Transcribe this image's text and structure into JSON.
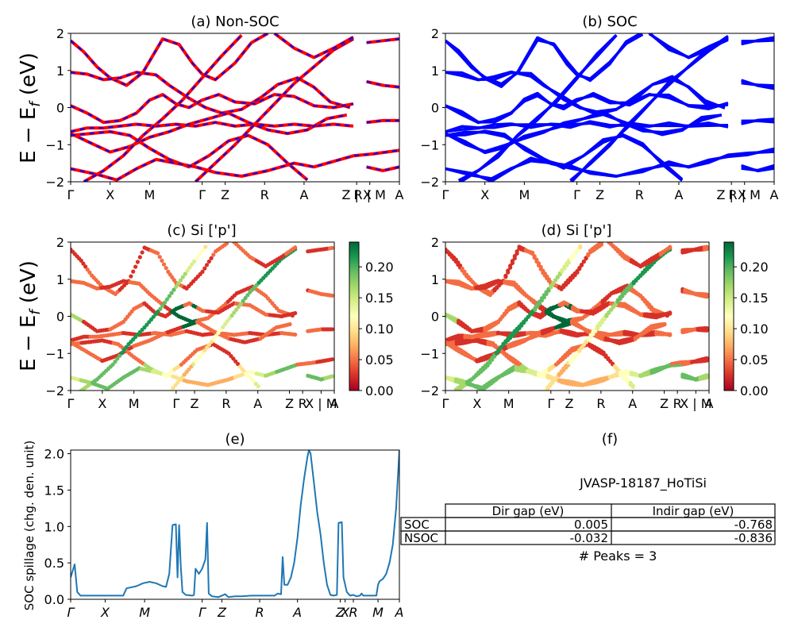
{
  "chart_data": [
    {
      "type": "line",
      "panel": "a",
      "title": "(a) Non-SOC",
      "ylabel": "E − E_f (eV)",
      "ylim": [
        -2,
        2
      ],
      "yticks": [
        "−2",
        "−1",
        "0",
        "1",
        "2"
      ],
      "xticks": [
        "Γ",
        "X",
        "M",
        "Γ",
        "Z",
        "R",
        "A",
        "Z | X",
        "R | M",
        "A"
      ],
      "colors": [
        "#ff0000",
        "#0000ff"
      ],
      "bands": [
        {
          "points": [
            [
              0,
              1.8
            ],
            [
              0.04,
              1.5
            ],
            [
              0.08,
              1.1
            ],
            [
              0.12,
              0.8
            ],
            [
              0.17,
              0.6
            ],
            [
              0.22,
              0.95
            ],
            [
              0.28,
              1.85
            ],
            [
              0.33,
              1.7
            ],
            [
              0.37,
              1.2
            ],
            [
              0.4,
              0.9
            ],
            [
              0.44,
              0.75
            ],
            [
              0.5,
              1.2
            ],
            [
              0.55,
              1.75
            ],
            [
              0.6,
              2.0
            ]
          ]
        },
        {
          "points": [
            [
              0,
              0.95
            ],
            [
              0.05,
              0.9
            ],
            [
              0.1,
              0.75
            ],
            [
              0.15,
              0.8
            ],
            [
              0.2,
              0.95
            ],
            [
              0.26,
              0.88
            ],
            [
              0.3,
              0.6
            ],
            [
              0.36,
              0.25
            ],
            [
              0.41,
              0.0
            ],
            [
              0.46,
              -0.15
            ],
            [
              0.52,
              -0.05
            ],
            [
              0.58,
              0.28
            ],
            [
              0.63,
              0.62
            ],
            [
              0.69,
              0.8
            ],
            [
              0.74,
              0.55
            ],
            [
              0.79,
              0.15
            ],
            [
              0.85,
              0.0
            ]
          ]
        },
        {
          "points": [
            [
              0,
              0.05
            ],
            [
              0.05,
              -0.15
            ],
            [
              0.1,
              -0.4
            ],
            [
              0.15,
              -0.35
            ],
            [
              0.2,
              -0.15
            ],
            [
              0.24,
              0.2
            ],
            [
              0.28,
              0.35
            ],
            [
              0.32,
              0.1
            ],
            [
              0.36,
              0.0
            ],
            [
              0.4,
              0.2
            ],
            [
              0.45,
              0.35
            ],
            [
              0.5,
              0.15
            ],
            [
              0.56,
              0.1
            ],
            [
              0.62,
              0.35
            ],
            [
              0.68,
              0.3
            ],
            [
              0.74,
              0.05
            ],
            [
              0.8,
              0.0
            ],
            [
              0.86,
              0.1
            ]
          ]
        },
        {
          "points": [
            [
              0,
              -0.65
            ],
            [
              0.05,
              -0.55
            ],
            [
              0.1,
              -0.55
            ],
            [
              0.15,
              -0.5
            ],
            [
              0.2,
              -0.45
            ],
            [
              0.26,
              -0.5
            ],
            [
              0.32,
              -0.45
            ],
            [
              0.38,
              -0.5
            ],
            [
              0.44,
              -0.4
            ],
            [
              0.5,
              -0.5
            ],
            [
              0.56,
              -0.45
            ],
            [
              0.62,
              -0.5
            ],
            [
              0.68,
              -0.45
            ],
            [
              0.74,
              -0.5
            ],
            [
              0.8,
              -0.45
            ],
            [
              0.86,
              -0.5
            ]
          ]
        },
        {
          "points": [
            [
              0,
              -0.7
            ],
            [
              0.06,
              -0.95
            ],
            [
              0.12,
              -1.2
            ],
            [
              0.18,
              -1.05
            ],
            [
              0.24,
              -0.8
            ],
            [
              0.3,
              -0.65
            ],
            [
              0.36,
              -0.45
            ],
            [
              0.42,
              -0.3
            ],
            [
              0.48,
              -0.15
            ],
            [
              0.54,
              -0.4
            ],
            [
              0.6,
              -0.6
            ],
            [
              0.66,
              -0.7
            ],
            [
              0.72,
              -0.6
            ],
            [
              0.78,
              -0.3
            ],
            [
              0.84,
              -0.2
            ]
          ]
        },
        {
          "points": [
            [
              0,
              -0.75
            ],
            [
              0.06,
              -0.7
            ],
            [
              0.12,
              -0.65
            ],
            [
              0.18,
              -0.75
            ],
            [
              0.24,
              -1.1
            ],
            [
              0.3,
              -1.4
            ],
            [
              0.36,
              -1.6
            ],
            [
              0.42,
              -1.3
            ],
            [
              0.48,
              -0.9
            ],
            [
              0.54,
              -0.75
            ],
            [
              0.6,
              -1.0
            ],
            [
              0.66,
              -1.5
            ],
            [
              0.72,
              -1.95
            ]
          ]
        },
        {
          "points": [
            [
              0,
              -1.65
            ],
            [
              0.08,
              -1.8
            ],
            [
              0.14,
              -1.95
            ],
            [
              0.2,
              -1.65
            ],
            [
              0.26,
              -1.4
            ],
            [
              0.32,
              -1.5
            ],
            [
              0.38,
              -1.6
            ],
            [
              0.44,
              -1.75
            ],
            [
              0.52,
              -1.85
            ],
            [
              0.6,
              -1.7
            ],
            [
              0.68,
              -1.5
            ],
            [
              0.74,
              -1.6
            ],
            [
              0.8,
              -1.45
            ],
            [
              0.86,
              -1.3
            ],
            [
              0.92,
              -1.25
            ],
            [
              1.0,
              -1.15
            ]
          ]
        },
        {
          "points": [
            [
              0.04,
              -2.0
            ],
            [
              0.1,
              -1.7
            ],
            [
              0.16,
              -1.3
            ],
            [
              0.22,
              -0.75
            ],
            [
              0.28,
              -0.3
            ],
            [
              0.34,
              0.2
            ],
            [
              0.4,
              0.8
            ],
            [
              0.46,
              1.4
            ],
            [
              0.52,
              1.95
            ]
          ]
        },
        {
          "points": [
            [
              0.38,
              -2.0
            ],
            [
              0.44,
              -1.5
            ],
            [
              0.5,
              -1.0
            ],
            [
              0.56,
              -0.45
            ],
            [
              0.62,
              0.1
            ],
            [
              0.68,
              0.65
            ],
            [
              0.74,
              1.1
            ],
            [
              0.8,
              1.55
            ],
            [
              0.86,
              1.85
            ]
          ]
        },
        {
          "points": [
            [
              0.62,
              2.0
            ],
            [
              0.68,
              1.6
            ],
            [
              0.74,
              1.35
            ],
            [
              0.8,
              1.6
            ],
            [
              0.86,
              1.9
            ]
          ]
        },
        {
          "points": [
            [
              0.9,
              1.75
            ],
            [
              0.95,
              1.8
            ],
            [
              1.0,
              1.85
            ]
          ]
        },
        {
          "points": [
            [
              0.9,
              0.7
            ],
            [
              0.95,
              0.6
            ],
            [
              1.0,
              0.55
            ]
          ]
        },
        {
          "points": [
            [
              0.9,
              -0.4
            ],
            [
              0.95,
              -0.35
            ],
            [
              1.0,
              -0.35
            ]
          ]
        },
        {
          "points": [
            [
              0.9,
              -1.6
            ],
            [
              0.95,
              -1.7
            ],
            [
              1.0,
              -1.6
            ]
          ]
        }
      ]
    },
    {
      "type": "line",
      "panel": "b",
      "title": "(b) SOC",
      "ylim": [
        -2,
        2
      ],
      "yticks": [
        "−2",
        "−1",
        "0",
        "1",
        "2"
      ],
      "xticks": [
        "Γ",
        "X",
        "M",
        "Γ",
        "Z",
        "R",
        "A",
        "Z | X",
        "R | M",
        "A"
      ],
      "colors": [
        "#0000ff"
      ]
    },
    {
      "type": "scatter",
      "panel": "c",
      "title": "(c)  Si ['p']",
      "ylabel": "E − E_f (eV)",
      "ylim": [
        -2,
        2
      ],
      "yticks": [
        "−2",
        "−1",
        "0",
        "1",
        "2"
      ],
      "xticks": [
        "Γ",
        "X",
        "M",
        "Γ",
        "Z",
        "R",
        "A",
        "Z",
        "R",
        "X | M",
        "A"
      ],
      "colorbar": {
        "ticks": [
          "0.00",
          "0.05",
          "0.10",
          "0.15",
          "0.20"
        ],
        "range": [
          0,
          0.24
        ],
        "colors": [
          "#a50026",
          "#d73027",
          "#f46d43",
          "#fdae61",
          "#fee08b",
          "#ffffbf",
          "#d9ef8b",
          "#a6d96a",
          "#66bd63",
          "#1a9850",
          "#006837"
        ]
      }
    },
    {
      "type": "scatter",
      "panel": "d",
      "title": "(d) Si ['p']",
      "ylim": [
        -2,
        2
      ],
      "yticks": [
        "−2",
        "−1",
        "0",
        "1",
        "2"
      ],
      "xticks": [
        "Γ",
        "X",
        "M",
        "Γ",
        "Z",
        "R",
        "A",
        "Z",
        "R",
        "X | M",
        "A"
      ],
      "colorbar": {
        "ticks": [
          "0.00",
          "0.05",
          "0.10",
          "0.15",
          "0.20"
        ],
        "range": [
          0,
          0.24
        ]
      }
    },
    {
      "type": "line",
      "panel": "e",
      "title": "(e)",
      "ylabel": "SOC spillage (chg. den. unit)",
      "ylim": [
        0,
        2.05
      ],
      "yticks": [
        "0.0",
        "0.5",
        "1.0",
        "1.5",
        "2.0"
      ],
      "xticks": [
        "Γ",
        "X",
        "M",
        "Γ",
        "Z",
        "R",
        "A",
        "Z",
        "X",
        "R",
        "M",
        "A"
      ],
      "color": "#1f77b4",
      "points": [
        [
          0,
          0.3
        ],
        [
          0.012,
          0.48
        ],
        [
          0.02,
          0.1
        ],
        [
          0.03,
          0.05
        ],
        [
          0.05,
          0.05
        ],
        [
          0.08,
          0.05
        ],
        [
          0.11,
          0.05
        ],
        [
          0.13,
          0.05
        ],
        [
          0.16,
          0.05
        ],
        [
          0.17,
          0.15
        ],
        [
          0.2,
          0.18
        ],
        [
          0.22,
          0.22
        ],
        [
          0.24,
          0.24
        ],
        [
          0.26,
          0.22
        ],
        [
          0.28,
          0.18
        ],
        [
          0.29,
          0.17
        ],
        [
          0.3,
          0.35
        ],
        [
          0.31,
          1.02
        ],
        [
          0.32,
          1.03
        ],
        [
          0.325,
          0.3
        ],
        [
          0.33,
          1.02
        ],
        [
          0.335,
          0.45
        ],
        [
          0.34,
          0.1
        ],
        [
          0.35,
          0.06
        ],
        [
          0.37,
          0.05
        ],
        [
          0.375,
          0.06
        ],
        [
          0.38,
          0.42
        ],
        [
          0.39,
          0.35
        ],
        [
          0.4,
          0.42
        ],
        [
          0.41,
          0.55
        ],
        [
          0.415,
          1.05
        ],
        [
          0.42,
          0.08
        ],
        [
          0.43,
          0.04
        ],
        [
          0.45,
          0.03
        ],
        [
          0.46,
          0.05
        ],
        [
          0.47,
          0.07
        ],
        [
          0.48,
          0.03
        ],
        [
          0.5,
          0.04
        ],
        [
          0.52,
          0.04
        ],
        [
          0.55,
          0.05
        ],
        [
          0.57,
          0.05
        ],
        [
          0.6,
          0.05
        ],
        [
          0.62,
          0.05
        ],
        [
          0.63,
          0.08
        ],
        [
          0.64,
          0.07
        ],
        [
          0.645,
          0.58
        ],
        [
          0.65,
          0.2
        ],
        [
          0.66,
          0.2
        ],
        [
          0.67,
          0.3
        ],
        [
          0.68,
          0.5
        ],
        [
          0.69,
          0.85
        ],
        [
          0.7,
          1.3
        ],
        [
          0.71,
          1.65
        ],
        [
          0.72,
          1.95
        ],
        [
          0.725,
          2.05
        ],
        [
          0.73,
          2.0
        ],
        [
          0.74,
          1.6
        ],
        [
          0.75,
          1.2
        ],
        [
          0.76,
          0.9
        ],
        [
          0.77,
          0.5
        ],
        [
          0.78,
          0.2
        ],
        [
          0.79,
          0.06
        ],
        [
          0.8,
          0.05
        ],
        [
          0.81,
          0.06
        ],
        [
          0.815,
          1.05
        ],
        [
          0.825,
          1.06
        ],
        [
          0.83,
          0.3
        ],
        [
          0.84,
          0.1
        ],
        [
          0.85,
          0.05
        ],
        [
          0.86,
          0.06
        ],
        [
          0.87,
          0.04
        ],
        [
          0.88,
          0.05
        ],
        [
          0.885,
          0.08
        ],
        [
          0.89,
          0.05
        ],
        [
          0.9,
          0.05
        ],
        [
          0.92,
          0.05
        ],
        [
          0.925,
          0.05
        ],
        [
          0.93,
          0.05
        ],
        [
          0.935,
          0.2
        ],
        [
          0.94,
          0.25
        ],
        [
          0.95,
          0.28
        ],
        [
          0.96,
          0.35
        ],
        [
          0.97,
          0.5
        ],
        [
          0.98,
          0.75
        ],
        [
          0.99,
          1.25
        ],
        [
          1.0,
          2.05
        ]
      ]
    }
  ],
  "panel_f": {
    "title": "(f)",
    "caption": "JVASP-18187_HoTiSi",
    "table": {
      "headers": [
        "",
        "Dir gap (eV)",
        "Indir gap (eV)"
      ],
      "rows": [
        {
          "label": "SOC",
          "dir": "0.005",
          "indir": "-0.768"
        },
        {
          "label": "NSOC",
          "dir": "-0.032",
          "indir": "-0.836"
        }
      ]
    },
    "peaks": "# Peaks = 3"
  }
}
